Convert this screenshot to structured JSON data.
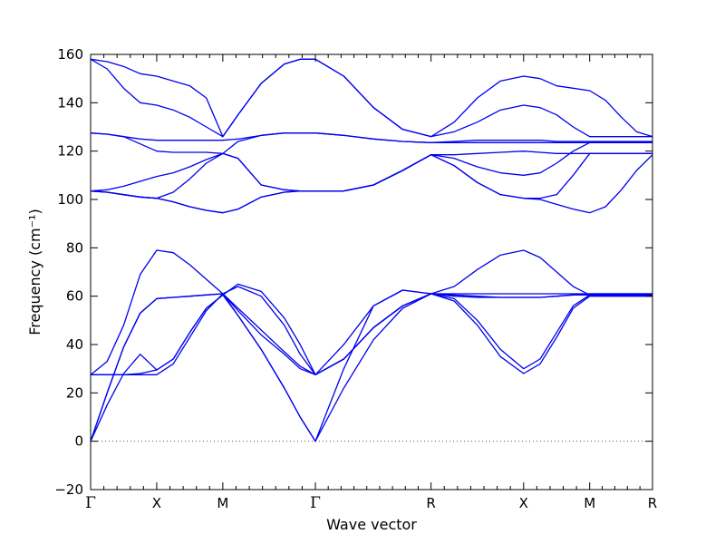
{
  "chart_data": {
    "type": "line",
    "xlabel": "Wave vector",
    "ylabel": "Frequency (cm⁻¹)",
    "ylim": [
      -20,
      160
    ],
    "yticks": [
      -20,
      0,
      20,
      40,
      60,
      80,
      100,
      120,
      140,
      160
    ],
    "xlim": [
      0,
      8.5
    ],
    "grid": false,
    "legend": "none",
    "line_color": "#0000ee",
    "zero_line": {
      "value": 0,
      "style": "dotted",
      "color": "#555555"
    },
    "high_symmetry_points": [
      {
        "label": "Γ",
        "x": 0
      },
      {
        "label": "X",
        "x": 1
      },
      {
        "label": "M",
        "x": 2
      },
      {
        "label": "Γ",
        "x": 3.4
      },
      {
        "label": "R",
        "x": 5.15
      },
      {
        "label": "X",
        "x": 6.55
      },
      {
        "label": "M",
        "x": 7.55
      },
      {
        "label": "R",
        "x": 8.5
      }
    ],
    "series": [
      {
        "x": [
          0,
          0.25,
          0.5,
          0.75,
          1,
          1.25,
          1.5,
          1.75,
          2,
          2.23,
          2.58,
          2.93,
          3.17,
          3.4,
          3.83,
          4.28,
          4.72,
          5.15,
          5.5,
          5.85,
          6.2,
          6.55,
          6.8,
          7.05,
          7.3,
          7.55,
          7.79,
          8.03,
          8.26,
          8.5
        ],
        "y": [
          158,
          157,
          155,
          152,
          151,
          149,
          147,
          142,
          126,
          135,
          148,
          156,
          158,
          158,
          151,
          138,
          129,
          126,
          132,
          142,
          149,
          151,
          150,
          147,
          146,
          145,
          141,
          134,
          128,
          126
        ]
      },
      {
        "x": [
          0,
          0.25,
          0.5,
          0.75,
          1,
          1.25,
          1.5,
          1.75,
          2,
          2.23,
          2.58,
          2.93,
          3.17,
          3.4,
          3.83,
          4.28,
          4.72,
          5.15,
          5.5,
          5.85,
          6.2,
          6.55,
          6.8,
          7.05,
          7.3,
          7.55,
          7.79,
          8.03,
          8.26,
          8.5
        ],
        "y": [
          158,
          154,
          146,
          140,
          139,
          137,
          134,
          130,
          126,
          135,
          148,
          156,
          158,
          158,
          151,
          138,
          129,
          126,
          128,
          132,
          137,
          139,
          138,
          135,
          130,
          126,
          126,
          126,
          126,
          126
        ]
      },
      {
        "x": [
          0,
          0.25,
          0.5,
          0.75,
          1,
          1.25,
          1.5,
          1.75,
          2,
          2.23,
          2.58,
          2.93,
          3.17,
          3.4,
          3.83,
          4.28,
          4.72,
          5.15,
          5.5,
          5.85,
          6.2,
          6.55,
          6.8,
          7.05,
          7.3,
          7.55,
          7.79,
          8.03,
          8.26,
          8.5
        ],
        "y": [
          127.5,
          127,
          126,
          125,
          124.5,
          124.5,
          124.5,
          124.5,
          124.5,
          125,
          126.5,
          127.5,
          127.5,
          127.5,
          126.5,
          125,
          124,
          123.5,
          124,
          124.5,
          124.5,
          124.5,
          124.5,
          124,
          124,
          124,
          124,
          124,
          124,
          124
        ]
      },
      {
        "x": [
          0,
          0.25,
          0.5,
          0.75,
          1,
          1.25,
          1.5,
          1.75,
          2,
          2.23,
          2.58,
          2.93,
          3.17,
          3.4,
          3.83,
          4.28,
          4.72,
          5.15,
          5.5,
          5.85,
          6.2,
          6.55,
          6.8,
          7.05,
          7.3,
          7.55,
          7.79,
          8.03,
          8.26,
          8.5
        ],
        "y": [
          127.5,
          127,
          126,
          123,
          120,
          119.5,
          119.5,
          119.5,
          119,
          124,
          126.5,
          127.5,
          127.5,
          127.5,
          126.5,
          125,
          124,
          123.5,
          123.5,
          123.5,
          123.5,
          123.5,
          123.5,
          123.5,
          123.5,
          123.5,
          123.5,
          123.5,
          123.5,
          123.5
        ]
      },
      {
        "x": [
          0,
          0.25,
          0.5,
          0.75,
          1,
          1.25,
          1.5,
          1.75,
          2,
          2.23,
          2.58,
          2.93,
          3.17,
          3.4,
          3.83,
          4.28,
          4.72,
          5.15,
          5.5,
          5.85,
          6.2,
          6.55,
          6.8,
          7.05,
          7.3,
          7.55,
          7.79,
          8.03,
          8.26,
          8.5
        ],
        "y": [
          103.5,
          104,
          105.5,
          107.5,
          109.5,
          111,
          113.5,
          116.5,
          119,
          117,
          106,
          104,
          103.5,
          103.5,
          103.5,
          106,
          112,
          118.5,
          118.5,
          119,
          119.5,
          120,
          119.5,
          119,
          119,
          119,
          119,
          119,
          119,
          119
        ]
      },
      {
        "x": [
          0,
          0.25,
          0.5,
          0.75,
          1,
          1.25,
          1.5,
          1.75,
          2,
          2.23,
          2.58,
          2.93,
          3.17,
          3.4,
          3.83,
          4.28,
          4.72,
          5.15,
          5.5,
          5.85,
          6.2,
          6.55,
          6.8,
          7.05,
          7.3,
          7.55,
          7.79,
          8.03,
          8.26,
          8.5
        ],
        "y": [
          103.5,
          103,
          102,
          101,
          100.5,
          103,
          108.5,
          115,
          119,
          117,
          106,
          104,
          103.5,
          103.5,
          103.5,
          106,
          112,
          118.5,
          117,
          113.5,
          111,
          110,
          111,
          115,
          120,
          123.5,
          123.5,
          123.5,
          123.5,
          123.5
        ]
      },
      {
        "x": [
          0,
          0.25,
          0.5,
          0.75,
          1,
          1.25,
          1.5,
          1.75,
          2,
          2.23,
          2.58,
          2.93,
          3.17,
          3.4,
          3.83,
          4.28,
          4.72,
          5.15,
          5.5,
          5.85,
          6.2,
          6.55,
          6.8,
          7.05,
          7.3,
          7.55,
          7.79,
          8.03,
          8.26,
          8.5
        ],
        "y": [
          103.5,
          103,
          102,
          101,
          100.5,
          99,
          97,
          95.5,
          94.5,
          96,
          101,
          103,
          103.5,
          103.5,
          103.5,
          106,
          112,
          118.5,
          114,
          107,
          102,
          100.5,
          100.5,
          102,
          110,
          119,
          119,
          119,
          119,
          119
        ]
      },
      {
        "x": [
          0,
          0.25,
          0.5,
          0.75,
          1,
          1.25,
          1.5,
          1.75,
          2,
          2.23,
          2.58,
          2.93,
          3.17,
          3.4,
          3.83,
          4.28,
          4.72,
          5.15,
          5.5,
          5.85,
          6.2,
          6.55,
          6.8,
          7.05,
          7.3,
          7.55,
          7.79,
          8.03,
          8.26,
          8.5
        ],
        "y": [
          103.5,
          103,
          102,
          101,
          100.5,
          99,
          97,
          95.5,
          94.5,
          96,
          101,
          103,
          103.5,
          103.5,
          103.5,
          106,
          112,
          118.5,
          114,
          107,
          102,
          100.5,
          100,
          98,
          96,
          94.5,
          97,
          104,
          112,
          118.5
        ]
      },
      {
        "x": [
          0,
          0.25,
          0.5,
          0.75,
          1,
          1.25,
          1.5,
          1.75,
          2,
          2.23,
          2.58,
          2.93,
          3.17,
          3.4,
          3.83,
          4.28,
          4.72,
          5.15,
          5.5,
          5.85,
          6.2,
          6.55,
          6.8,
          7.05,
          7.3,
          7.55,
          7.79,
          8.03,
          8.26,
          8.5
        ],
        "y": [
          27.5,
          33,
          48,
          69,
          79,
          78,
          73,
          67,
          61,
          55,
          46,
          37,
          31,
          27.5,
          34,
          47,
          56,
          61,
          64,
          71,
          77,
          79,
          76,
          70,
          64,
          60.5,
          60.5,
          60.5,
          60.5,
          60.5
        ]
      },
      {
        "x": [
          0,
          0.25,
          0.5,
          0.75,
          1,
          1.25,
          1.5,
          1.75,
          2,
          2.23,
          2.58,
          2.93,
          3.17,
          3.4,
          3.83,
          4.28,
          4.72,
          5.15,
          5.5,
          5.85,
          6.2,
          6.55,
          6.8,
          7.05,
          7.3,
          7.55,
          7.79,
          8.03,
          8.26,
          8.5
        ],
        "y": [
          27.5,
          27.5,
          27.5,
          27.5,
          27.5,
          32,
          43,
          54,
          61,
          64,
          60,
          48,
          36,
          27.5,
          34,
          47,
          56,
          61,
          58,
          48,
          35,
          28,
          32,
          43,
          55,
          60,
          60,
          60,
          60,
          60
        ]
      },
      {
        "x": [
          0,
          0.25,
          0.5,
          0.75,
          1,
          1.25,
          1.5,
          1.75,
          2,
          2.23,
          2.58,
          2.93,
          3.17,
          3.4,
          3.83,
          4.28,
          4.72,
          5.15,
          5.5,
          5.85,
          6.2,
          6.55,
          6.8,
          7.05,
          7.3,
          7.55,
          7.79,
          8.03,
          8.26,
          8.5
        ],
        "y": [
          27.5,
          27.5,
          27.5,
          28,
          29.5,
          34,
          45,
          55,
          60.5,
          65,
          62,
          51,
          40,
          27.5,
          40,
          56,
          62.5,
          61,
          59,
          50,
          38,
          30,
          34,
          45,
          56,
          60.5,
          60.5,
          60.5,
          60.5,
          60.5
        ]
      },
      {
        "x": [
          0,
          0.25,
          0.5,
          0.75,
          1,
          1.25,
          1.5,
          1.75,
          2,
          2.23,
          2.58,
          2.93,
          3.17,
          3.4,
          3.83,
          4.28,
          4.72,
          5.15,
          5.5,
          5.85,
          6.2,
          6.55,
          6.8,
          7.05,
          7.3,
          7.55,
          7.79,
          8.03,
          8.26,
          8.5
        ],
        "y": [
          0,
          15,
          28,
          36,
          29.5,
          34,
          45,
          55,
          60.5,
          52,
          38,
          22,
          10,
          0,
          30,
          56,
          62.5,
          61,
          60,
          59.5,
          59.5,
          59.5,
          59.5,
          60,
          60.5,
          60.5,
          60.5,
          60.5,
          60.5,
          60.5
        ]
      },
      {
        "x": [
          0,
          0.25,
          0.5,
          0.75,
          1,
          1.25,
          1.5,
          1.75,
          2,
          2.23,
          2.58,
          2.93,
          3.17,
          3.4,
          3.83,
          4.28,
          4.72,
          5.15,
          5.5,
          5.85,
          6.2,
          6.55,
          6.8,
          7.05,
          7.3,
          7.55,
          7.79,
          8.03,
          8.26,
          8.5
        ],
        "y": [
          0,
          20,
          39,
          53,
          59,
          59.5,
          60,
          60.5,
          61,
          52,
          38,
          22,
          10,
          0,
          22,
          42,
          55,
          61,
          60.5,
          60,
          59.5,
          59.5,
          59.5,
          60,
          60.5,
          61,
          61,
          61,
          61,
          61
        ]
      },
      {
        "x": [
          0,
          0.25,
          0.5,
          0.75,
          1,
          1.25,
          1.5,
          1.75,
          2,
          2.23,
          2.58,
          2.93,
          3.17,
          3.4,
          3.83,
          4.28,
          4.72,
          5.15,
          5.5,
          5.85,
          6.2,
          6.55,
          6.8,
          7.05,
          7.3,
          7.55,
          7.79,
          8.03,
          8.26,
          8.5
        ],
        "y": [
          0,
          20,
          39,
          53,
          59,
          59.5,
          60,
          60.5,
          61,
          54,
          44,
          36,
          30,
          27.5,
          34,
          47,
          56,
          61,
          61,
          61,
          61,
          61,
          61,
          61,
          61,
          61,
          61,
          61,
          61,
          61
        ]
      }
    ]
  }
}
